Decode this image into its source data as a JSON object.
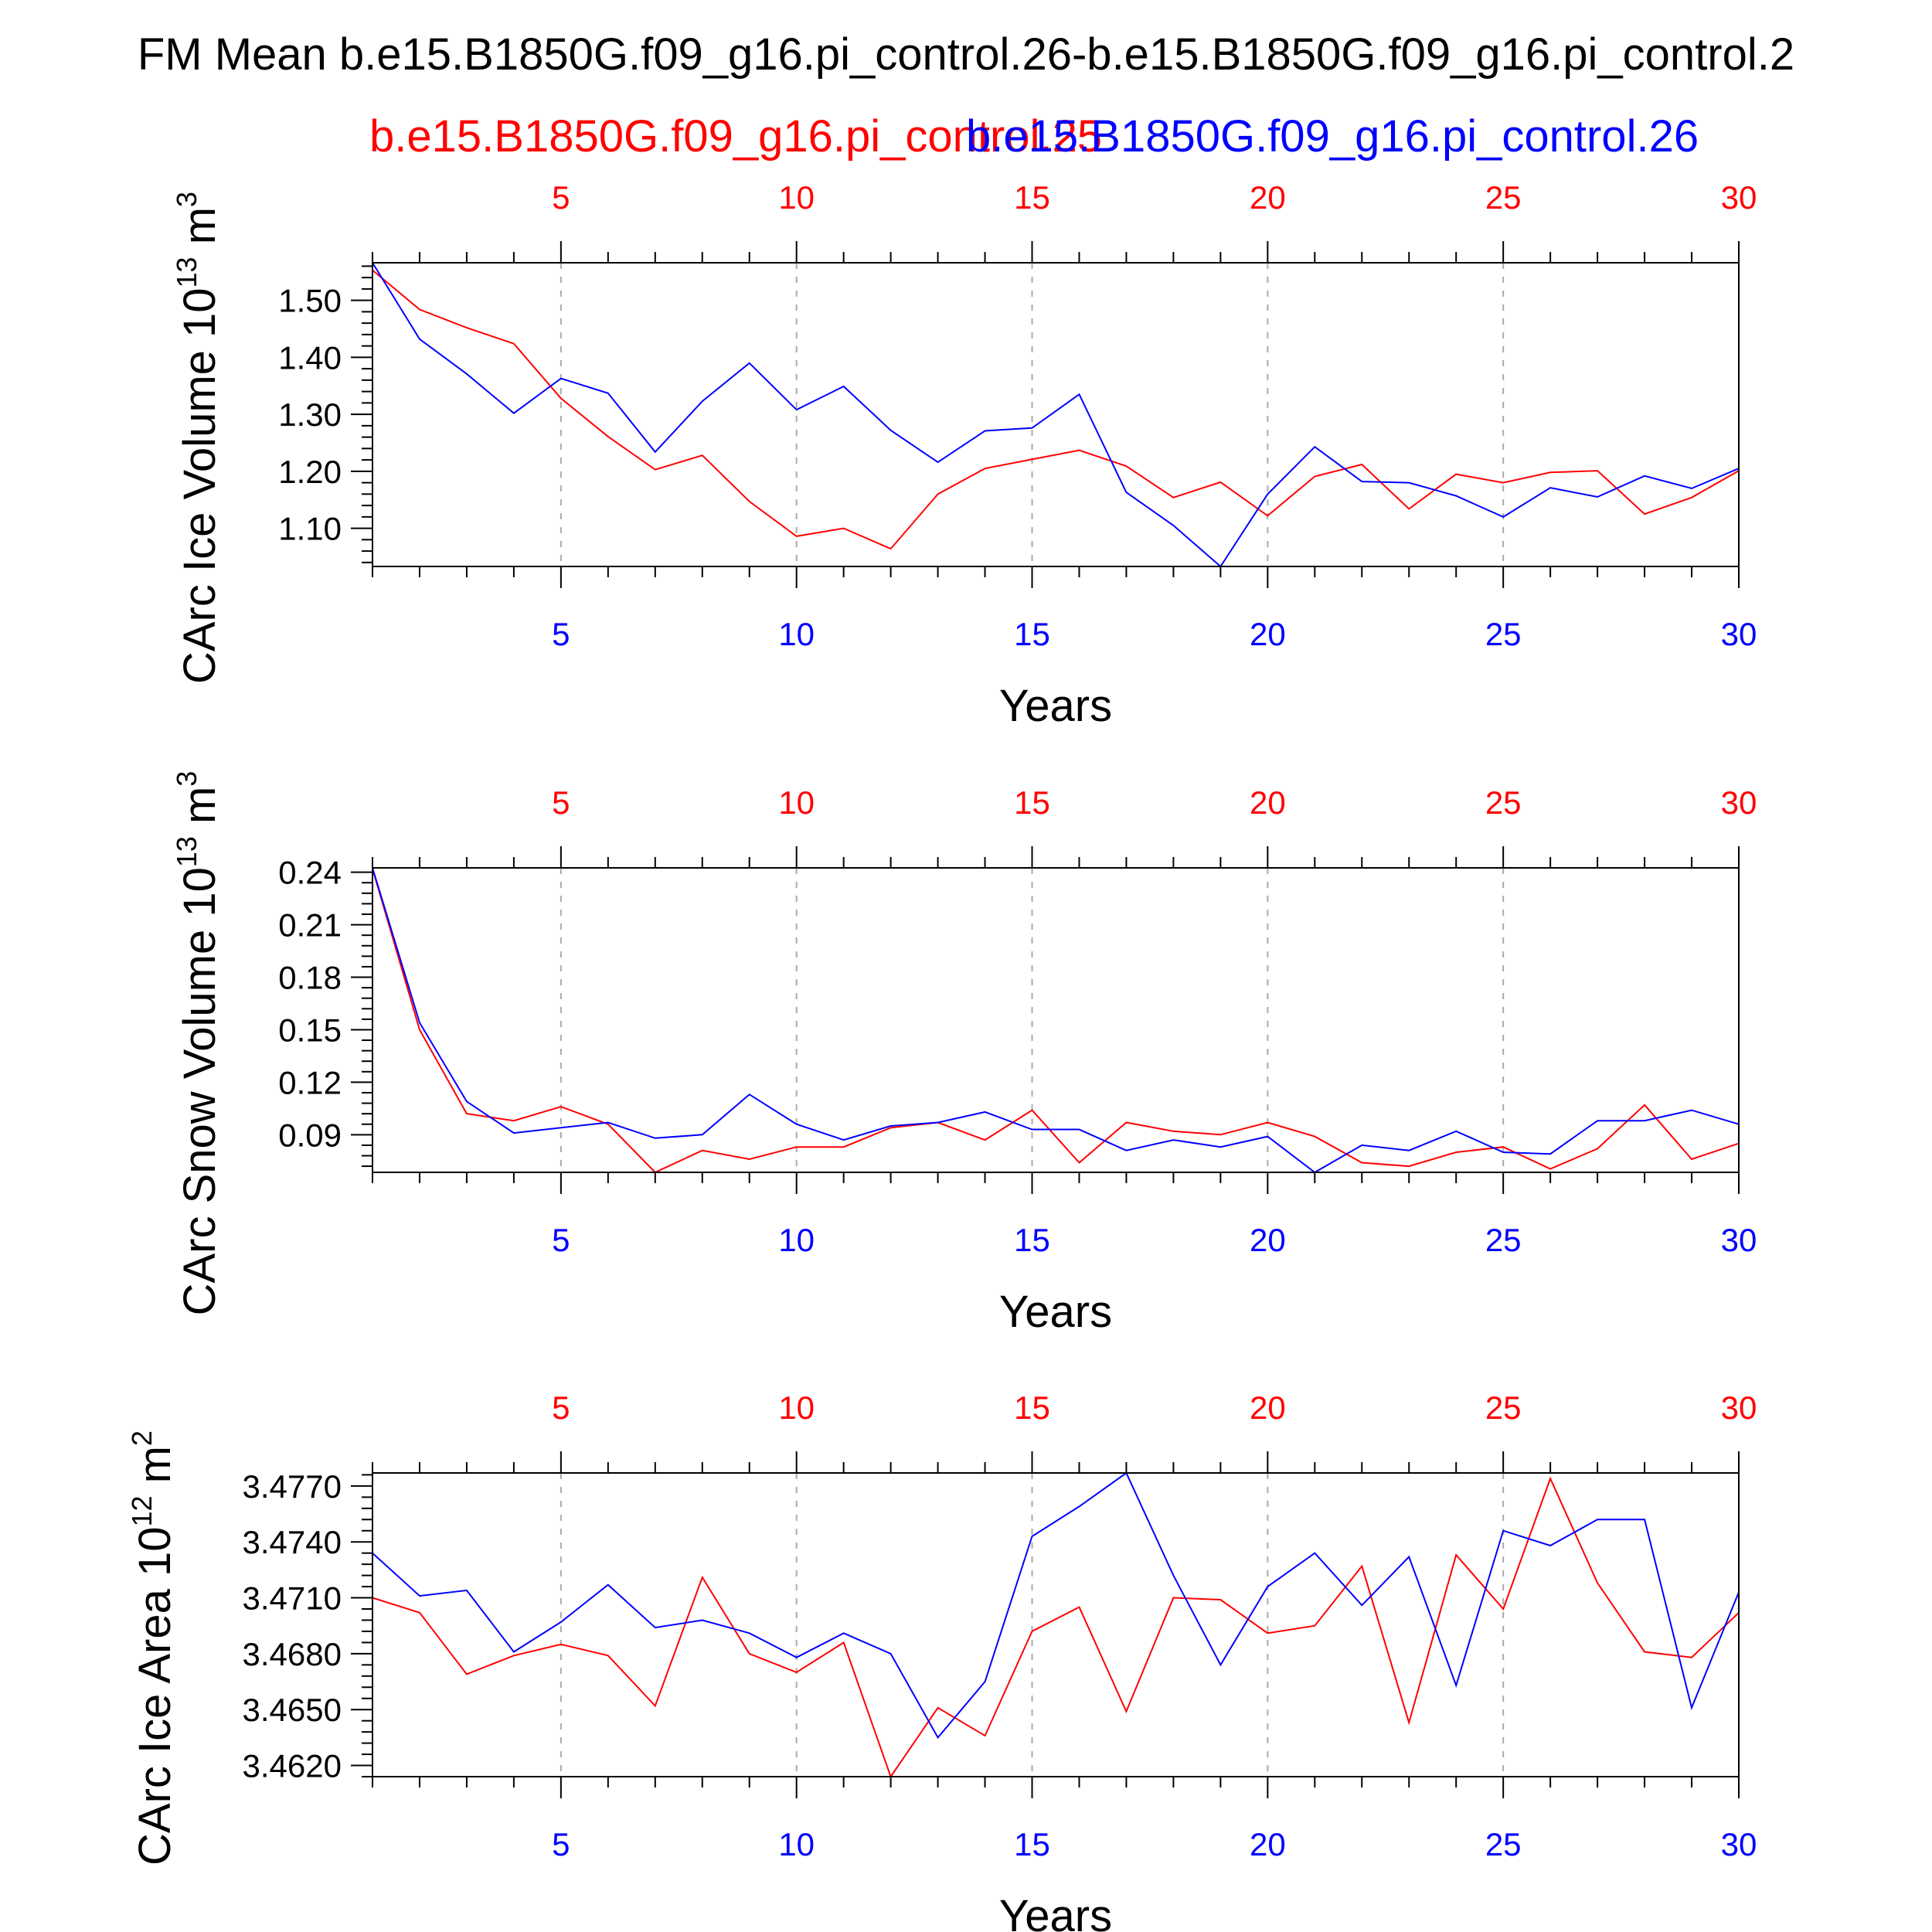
{
  "title": "FM Mean b.e15.B1850G.f09_g16.pi_control.26-b.e15.B1850G.f09_g16.pi_control.2",
  "legend": {
    "red": "b.e15.B1850G.f09_g16.pi_control.25",
    "blue": "b.e15.B1850G.f09_g16.pi_control.26"
  },
  "colors": {
    "red": "#ff0000",
    "blue": "#0000ff",
    "axis": "#000000"
  },
  "chart_data": [
    {
      "type": "line",
      "ylabel_main": "CArc Ice Volume 10",
      "ylabel_exp": "13",
      "ylabel_unit": " m",
      "ylabel_unit_exp": "3",
      "xlabel": "Years",
      "xlim": [
        1,
        30
      ],
      "ylim": [
        1.033,
        1.566
      ],
      "yticks": [
        "1.10",
        "1.20",
        "1.30",
        "1.40",
        "1.50"
      ],
      "xticks": [
        "5",
        "10",
        "15",
        "20",
        "25",
        "30"
      ],
      "grid": "dashed vertical at x ticks",
      "x": [
        1,
        2,
        3,
        4,
        5,
        6,
        7,
        8,
        9,
        10,
        11,
        12,
        13,
        14,
        15,
        16,
        17,
        18,
        19,
        20,
        21,
        22,
        23,
        24,
        25,
        26,
        27,
        28,
        29,
        30
      ],
      "series": [
        {
          "name": "b.e15.B1850G.f09_g16.pi_control.25",
          "color": "#ff0000",
          "values": [
            1.553,
            1.484,
            1.452,
            1.424,
            1.328,
            1.261,
            1.203,
            1.228,
            1.147,
            1.086,
            1.1,
            1.064,
            1.16,
            1.205,
            1.221,
            1.237,
            1.209,
            1.154,
            1.181,
            1.122,
            1.191,
            1.212,
            1.134,
            1.195,
            1.18,
            1.198,
            1.201,
            1.125,
            1.154,
            1.201
          ]
        },
        {
          "name": "b.e15.B1850G.f09_g16.pi_control.26",
          "color": "#0000ff",
          "values": [
            1.566,
            1.432,
            1.371,
            1.302,
            1.363,
            1.337,
            1.234,
            1.323,
            1.39,
            1.308,
            1.349,
            1.272,
            1.216,
            1.271,
            1.276,
            1.335,
            1.163,
            1.105,
            1.033,
            1.16,
            1.243,
            1.182,
            1.18,
            1.157,
            1.12,
            1.171,
            1.155,
            1.192,
            1.17,
            1.205
          ]
        }
      ]
    },
    {
      "type": "line",
      "ylabel_main": "CArc Snow Volume 10",
      "ylabel_exp": "13",
      "ylabel_unit": " m",
      "ylabel_unit_exp": "3",
      "xlabel": "Years",
      "xlim": [
        1,
        30
      ],
      "ylim": [
        0.0685,
        0.2425
      ],
      "yticks": [
        "0.09",
        "0.12",
        "0.15",
        "0.18",
        "0.21",
        "0.24"
      ],
      "xticks": [
        "5",
        "10",
        "15",
        "20",
        "25",
        "30"
      ],
      "grid": "dashed vertical at x ticks",
      "x": [
        1,
        2,
        3,
        4,
        5,
        6,
        7,
        8,
        9,
        10,
        11,
        12,
        13,
        14,
        15,
        16,
        17,
        18,
        19,
        20,
        21,
        22,
        23,
        24,
        25,
        26,
        27,
        28,
        29,
        30
      ],
      "series": [
        {
          "name": "b.e15.B1850G.f09_g16.pi_control.25",
          "color": "#ff0000",
          "values": [
            0.242,
            0.15,
            0.102,
            0.098,
            0.106,
            0.096,
            0.0685,
            0.081,
            0.076,
            0.083,
            0.083,
            0.094,
            0.097,
            0.087,
            0.104,
            0.074,
            0.097,
            0.092,
            0.09,
            0.097,
            0.089,
            0.074,
            0.072,
            0.08,
            0.083,
            0.0705,
            0.082,
            0.107,
            0.076,
            0.085
          ]
        },
        {
          "name": "b.e15.B1850G.f09_g16.pi_control.26",
          "color": "#0000ff",
          "values": [
            0.2425,
            0.154,
            0.109,
            0.091,
            0.094,
            0.097,
            0.088,
            0.09,
            0.113,
            0.096,
            0.087,
            0.095,
            0.097,
            0.103,
            0.093,
            0.093,
            0.081,
            0.087,
            0.083,
            0.089,
            0.0685,
            0.084,
            0.081,
            0.092,
            0.08,
            0.079,
            0.098,
            0.098,
            0.104,
            0.096
          ]
        }
      ]
    },
    {
      "type": "line",
      "ylabel_main": "CArc Ice Area 10",
      "ylabel_exp": "12",
      "ylabel_unit": " m",
      "ylabel_unit_exp": "2",
      "xlabel": "Years",
      "xlim": [
        1,
        30
      ],
      "ylim": [
        3.4614,
        3.4777
      ],
      "yticks": [
        "3.4620",
        "3.4650",
        "3.4680",
        "3.4710",
        "3.4740",
        "3.4770"
      ],
      "xticks": [
        "5",
        "10",
        "15",
        "20",
        "25",
        "30"
      ],
      "grid": "dashed vertical at x ticks",
      "x": [
        1,
        2,
        3,
        4,
        5,
        6,
        7,
        8,
        9,
        10,
        11,
        12,
        13,
        14,
        15,
        16,
        17,
        18,
        19,
        20,
        21,
        22,
        23,
        24,
        25,
        26,
        27,
        28,
        29,
        30
      ],
      "series": [
        {
          "name": "b.e15.B1850G.f09_g16.pi_control.25",
          "color": "#ff0000",
          "values": [
            3.471,
            3.4702,
            3.4669,
            3.4679,
            3.4685,
            3.4679,
            3.4652,
            3.4721,
            3.468,
            3.467,
            3.4686,
            3.4614,
            3.4651,
            3.4636,
            3.4692,
            3.4705,
            3.4649,
            3.471,
            3.4709,
            3.4691,
            3.4695,
            3.4727,
            3.4643,
            3.4733,
            3.4704,
            3.4774,
            3.4718,
            3.4681,
            3.4678,
            3.4702
          ]
        },
        {
          "name": "b.e15.B1850G.f09_g16.pi_control.26",
          "color": "#0000ff",
          "values": [
            3.4734,
            3.4711,
            3.4714,
            3.4681,
            3.4697,
            3.4717,
            3.4694,
            3.4698,
            3.4691,
            3.4678,
            3.4691,
            3.468,
            3.4635,
            3.4665,
            3.4743,
            3.4759,
            3.4777,
            3.4722,
            3.4674,
            3.4716,
            3.4734,
            3.4706,
            3.4732,
            3.4663,
            3.4746,
            3.4738,
            3.4752,
            3.4752,
            3.4651,
            3.4713
          ]
        }
      ]
    }
  ]
}
